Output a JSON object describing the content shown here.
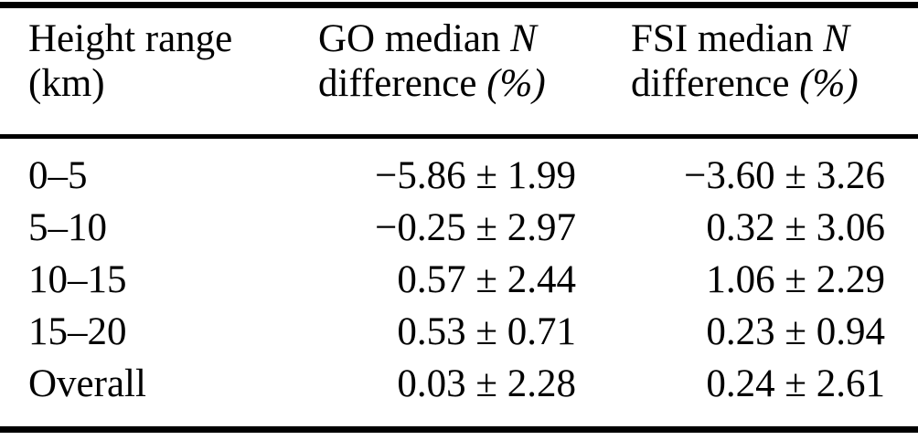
{
  "table": {
    "header": {
      "col1": {
        "line1": "Height range",
        "line2": "(km)"
      },
      "col2": {
        "line1_text": "GO median",
        "line1_var": "N",
        "line2_text": "difference",
        "line2_unit": "(%)"
      },
      "col3": {
        "line1_text": "FSI median",
        "line1_var": "N",
        "line2_text": "difference",
        "line2_unit": "(%)"
      }
    },
    "rows": [
      {
        "range": "0–5",
        "go": "−5.86 ± 1.99",
        "fsi": "−3.60 ± 3.26"
      },
      {
        "range": "5–10",
        "go": "−0.25 ± 2.97",
        "fsi": "0.32 ± 3.06"
      },
      {
        "range": "10–15",
        "go": "0.57 ± 2.44",
        "fsi": "1.06 ± 2.29"
      },
      {
        "range": "15–20",
        "go": "0.53 ± 0.71",
        "fsi": "0.23 ± 0.94"
      },
      {
        "range": "Overall",
        "go": "0.03 ± 2.28",
        "fsi": "0.24 ± 2.61"
      }
    ],
    "colors": {
      "text": "#000000",
      "background": "#ffffff",
      "rule": "#000000"
    }
  },
  "chart_data": {
    "type": "table",
    "title": "",
    "columns": [
      "Height range (km)",
      "GO median N difference (%)",
      "FSI median N difference (%)"
    ],
    "categories": [
      "0–5",
      "5–10",
      "10–15",
      "15–20",
      "Overall"
    ],
    "series": [
      {
        "name": "GO median N difference (%)",
        "values": [
          -5.86,
          -0.25,
          0.57,
          0.53,
          0.03
        ],
        "uncertainty": [
          1.99,
          2.97,
          2.44,
          0.71,
          2.28
        ]
      },
      {
        "name": "FSI median N difference (%)",
        "values": [
          -3.6,
          0.32,
          1.06,
          0.23,
          0.24
        ],
        "uncertainty": [
          3.26,
          3.06,
          2.29,
          0.94,
          2.61
        ]
      }
    ]
  }
}
